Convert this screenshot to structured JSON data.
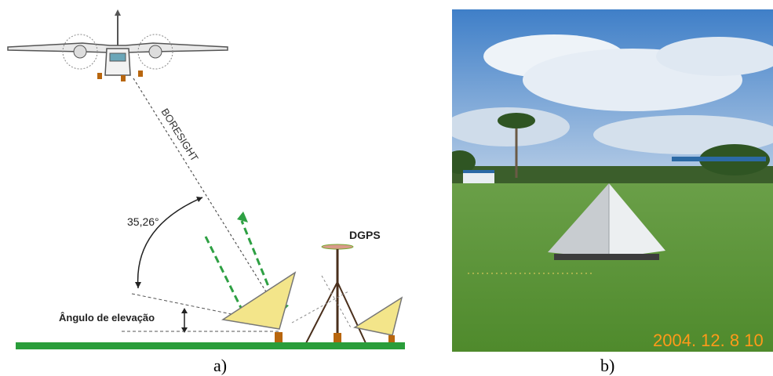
{
  "diagram": {
    "boresight_label": "BORESIGHT",
    "angle_label": "35,26°",
    "elevation_label": "Ângulo de elevação",
    "dgps_label": "DGPS",
    "colors": {
      "ground": "#2a9d3a",
      "reflector": "#f3e58a",
      "ray": "#2ea043",
      "stake": "#b8660e"
    }
  },
  "photo": {
    "date_stamp": "2004. 12. 8 10",
    "colors": {
      "sky": "#7aa6d8",
      "grass": "#5a9a3a",
      "stamp": "#ff9a1a"
    }
  },
  "captions": {
    "a": "a)",
    "b": "b)"
  }
}
